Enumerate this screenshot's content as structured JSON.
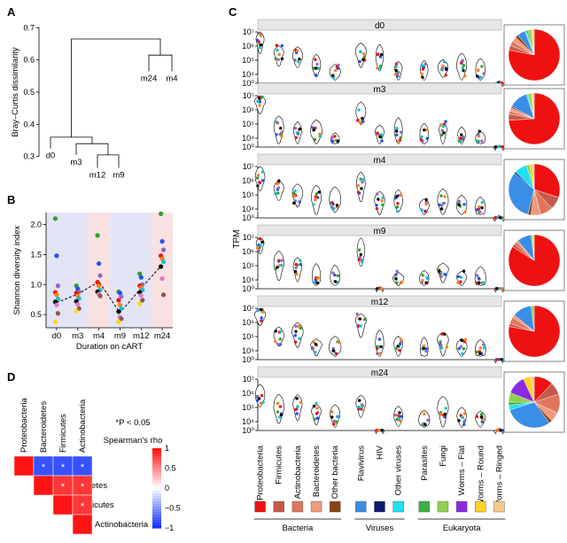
{
  "panels": {
    "a": "A",
    "b": "B",
    "c": "C",
    "d": "D"
  },
  "chart_data": [
    {
      "id": "A",
      "type": "dendrogram",
      "ylabel": "Bray–Curtis dissimilarity",
      "yticks": [
        "0.3",
        "0.4",
        "0.5",
        "0.6",
        "0.7"
      ],
      "ylim": [
        0.28,
        0.72
      ],
      "leaves": [
        "d0",
        "m3",
        "m12",
        "m9",
        "m24",
        "m4"
      ],
      "merges": [
        {
          "a": "m12",
          "b": "m9",
          "height": 0.305
        },
        {
          "a": "m3",
          "b": "m12+m9",
          "height": 0.34
        },
        {
          "a": "d0",
          "b": "m3+m12+m9",
          "height": 0.36
        },
        {
          "a": "m24",
          "b": "m4",
          "height": 0.615
        },
        {
          "a": "left",
          "b": "right",
          "height": 0.665
        }
      ]
    },
    {
      "id": "B",
      "type": "scatter",
      "ylabel": "Shannon diversity index",
      "xlabel": "Duration on cART",
      "categories": [
        "d0",
        "m3",
        "m4",
        "m9",
        "m12",
        "m24"
      ],
      "yticks": [
        "0.5",
        "1.0",
        "1.5",
        "2.0"
      ],
      "ylim": [
        0.28,
        2.2
      ],
      "mean_line": [
        0.7,
        0.84,
        1.05,
        0.53,
        0.94,
        1.33
      ],
      "points": [
        [
          2.1,
          1.48,
          0.98,
          0.87,
          0.83,
          0.76,
          0.71,
          0.66,
          0.52,
          0.38
        ],
        [
          0.98,
          0.93,
          0.88,
          0.86,
          0.81,
          0.77,
          0.72,
          0.67,
          0.6,
          0.56
        ],
        [
          1.82,
          1.35,
          1.15,
          1.04,
          0.98,
          0.91,
          0.88,
          0.84,
          0.81
        ],
        [
          0.88,
          0.86,
          0.8,
          0.74,
          0.66,
          0.6,
          0.55,
          0.46,
          0.43,
          0.38
        ],
        [
          1.18,
          1.12,
          1.0,
          0.98,
          0.95,
          0.91,
          0.87,
          0.82,
          0.74,
          0.68
        ],
        [
          2.18,
          1.72,
          1.58,
          1.48,
          1.43,
          1.38,
          1.3,
          1.1,
          0.83
        ]
      ]
    },
    {
      "id": "C",
      "type": "violin",
      "ylabel": "TPM",
      "yticks": [
        "10⁰",
        "10⁴",
        "10⁵",
        "10⁶",
        "10⁷"
      ],
      "timepoints": [
        "d0",
        "m3",
        "m4",
        "m9",
        "m12",
        "m24"
      ],
      "categories": [
        "Proteobacteria",
        "Firmicutes",
        "Actinobacteria",
        "Bacteroidetes",
        "Other bacteria",
        "Flavivirus",
        "HIV",
        "Other viruses",
        "Parasites",
        "Fungi",
        "Worms – Flat",
        "Worms – Round",
        "Worms – Ringed"
      ],
      "category_colors": [
        "#ee1111",
        "#c65a4a",
        "#e0765c",
        "#ef9a7e",
        "#8b4513",
        "#3a8ee6",
        "#0a1a6e",
        "#22e0f0",
        "#3cb043",
        "#90d050",
        "#8a2be2",
        "#ffd027",
        "#f5c98a"
      ],
      "groups": [
        {
          "label": "Bacteria",
          "from": 0,
          "to": 4
        },
        {
          "label": "Viruses",
          "from": 5,
          "to": 7
        },
        {
          "label": "Eukaryota",
          "from": 8,
          "to": 12
        }
      ],
      "median_log10_tpm": [
        [
          6.4,
          5.5,
          5.2,
          4.5,
          4.1,
          5.5,
          5.0,
          4.4,
          4.2,
          4.4,
          4.4,
          4.1,
          0.2
        ],
        [
          6.6,
          4.6,
          4.4,
          4.3,
          3.9,
          5.7,
          4.4,
          4.3,
          4.0,
          4.6,
          4.2,
          3.9,
          0.2
        ],
        [
          6.1,
          5.4,
          5.0,
          4.6,
          4.4,
          5.6,
          4.5,
          4.4,
          4.2,
          4.4,
          4.1,
          3.9,
          0.2
        ],
        [
          6.6,
          5.0,
          4.8,
          4.0,
          4.0,
          5.8,
          0.3,
          4.1,
          4.0,
          4.7,
          4.2,
          3.9,
          0.2
        ],
        [
          6.5,
          5.0,
          5.2,
          4.4,
          4.1,
          6.1,
          4.3,
          4.4,
          3.9,
          4.7,
          4.2,
          3.9,
          0.2
        ],
        [
          5.7,
          4.8,
          5.1,
          4.7,
          4.4,
          5.2,
          0.3,
          4.3,
          4.0,
          4.8,
          4.3,
          4.2,
          0.2
        ]
      ],
      "pies": [
        [
          0.78,
          0.03,
          0.03,
          0.03,
          0.02,
          0.05,
          0.0,
          0.01,
          0.01,
          0.02,
          0.0,
          0.01,
          0.01
        ],
        [
          0.74,
          0.04,
          0.02,
          0.02,
          0.01,
          0.12,
          0.0,
          0.01,
          0.0,
          0.02,
          0.0,
          0.01,
          0.01
        ],
        [
          0.3,
          0.08,
          0.08,
          0.06,
          0.02,
          0.32,
          0.01,
          0.08,
          0.0,
          0.02,
          0.0,
          0.02,
          0.01
        ],
        [
          0.84,
          0.02,
          0.02,
          0.01,
          0.0,
          0.09,
          0.0,
          0.0,
          0.0,
          0.01,
          0.0,
          0.01,
          0.0
        ],
        [
          0.78,
          0.02,
          0.04,
          0.02,
          0.0,
          0.12,
          0.0,
          0.0,
          0.0,
          0.02,
          0.0,
          0.0,
          0.0
        ],
        [
          0.12,
          0.08,
          0.12,
          0.06,
          0.02,
          0.3,
          0.0,
          0.03,
          0.02,
          0.06,
          0.12,
          0.05,
          0.02
        ]
      ]
    },
    {
      "id": "D",
      "type": "heatmap",
      "title": "Spearman's rho",
      "note": "*P < 0.05",
      "labels": [
        "Proteobacteria",
        "Bacteroidetes",
        "Firmicutes",
        "Actinobacteria"
      ],
      "colorbar_ticks": [
        "1",
        "0.5",
        "0",
        "−0.5",
        "−1"
      ],
      "cells": [
        {
          "row": 0,
          "col": 0,
          "rho": 1,
          "star": ""
        },
        {
          "row": 0,
          "col": 1,
          "rho": -0.85,
          "star": "*"
        },
        {
          "row": 0,
          "col": 2,
          "rho": -0.85,
          "star": "*"
        },
        {
          "row": 0,
          "col": 3,
          "rho": -0.85,
          "star": "*"
        },
        {
          "row": 1,
          "col": 1,
          "rho": 1,
          "star": ""
        },
        {
          "row": 1,
          "col": 2,
          "rho": 0.85,
          "star": "*"
        },
        {
          "row": 1,
          "col": 3,
          "rho": 0.85,
          "star": "*"
        },
        {
          "row": 2,
          "col": 2,
          "rho": 1,
          "star": ""
        },
        {
          "row": 2,
          "col": 3,
          "rho": 0.85,
          "star": "*"
        },
        {
          "row": 3,
          "col": 3,
          "rho": 1,
          "star": ""
        }
      ]
    }
  ]
}
